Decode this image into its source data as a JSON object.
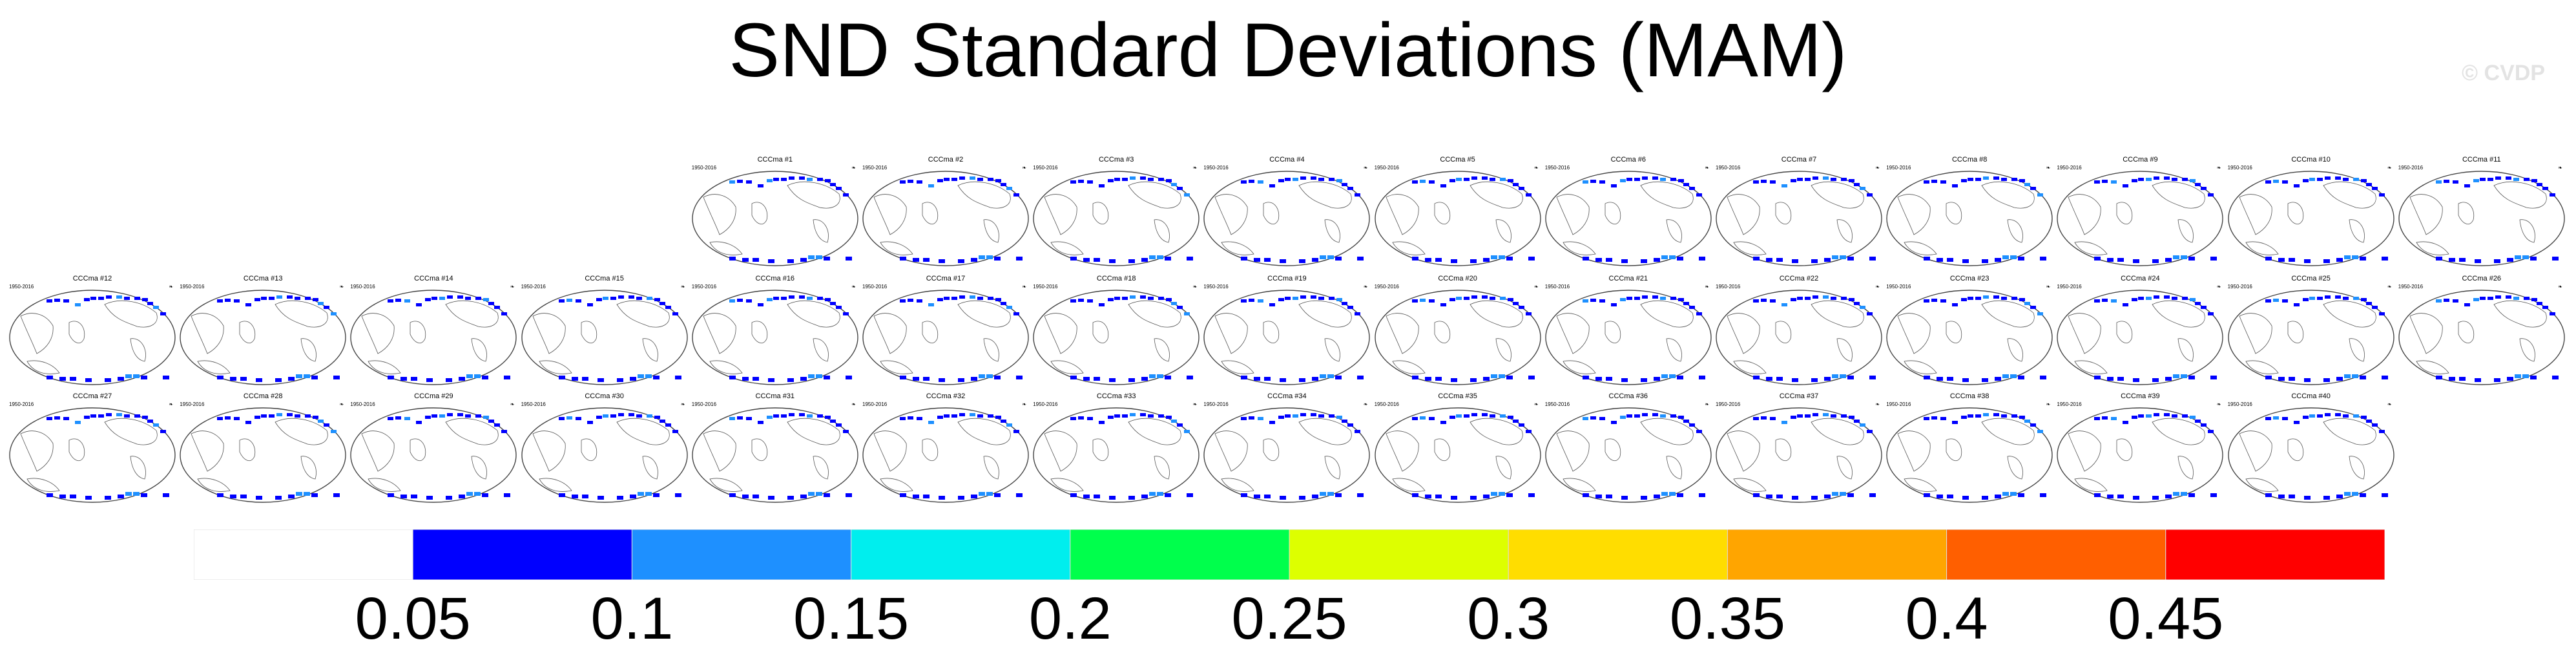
{
  "title": "SND Standard Deviations (MAM)",
  "credit": "© CVDP",
  "panel_years": "1950-2016",
  "panel_corner_mark": "❧",
  "panels": [
    {
      "label": "CCCma #1"
    },
    {
      "label": "CCCma #2"
    },
    {
      "label": "CCCma #3"
    },
    {
      "label": "CCCma #4"
    },
    {
      "label": "CCCma #5"
    },
    {
      "label": "CCCma #6"
    },
    {
      "label": "CCCma #7"
    },
    {
      "label": "CCCma #8"
    },
    {
      "label": "CCCma #9"
    },
    {
      "label": "CCCma #10"
    },
    {
      "label": "CCCma #11"
    },
    {
      "label": "CCCma #12"
    },
    {
      "label": "CCCma #13"
    },
    {
      "label": "CCCma #14"
    },
    {
      "label": "CCCma #15"
    },
    {
      "label": "CCCma #16"
    },
    {
      "label": "CCCma #17"
    },
    {
      "label": "CCCma #18"
    },
    {
      "label": "CCCma #19"
    },
    {
      "label": "CCCma #20"
    },
    {
      "label": "CCCma #21"
    },
    {
      "label": "CCCma #22"
    },
    {
      "label": "CCCma #23"
    },
    {
      "label": "CCCma #24"
    },
    {
      "label": "CCCma #25"
    },
    {
      "label": "CCCma #26"
    },
    {
      "label": "CCCma #27"
    },
    {
      "label": "CCCma #28"
    },
    {
      "label": "CCCma #29"
    },
    {
      "label": "CCCma #30"
    },
    {
      "label": "CCCma #31"
    },
    {
      "label": "CCCma #32"
    },
    {
      "label": "CCCma #33"
    },
    {
      "label": "CCCma #34"
    },
    {
      "label": "CCCma #35"
    },
    {
      "label": "CCCma #36"
    },
    {
      "label": "CCCma #37"
    },
    {
      "label": "CCCma #38"
    },
    {
      "label": "CCCma #39"
    },
    {
      "label": "CCCma #40"
    }
  ],
  "chart_data": {
    "type": "heatmap",
    "title": "SND Standard Deviations (MAM)",
    "colorbar": {
      "levels": [
        0.05,
        0.1,
        0.15,
        0.2,
        0.25,
        0.3,
        0.35,
        0.4,
        0.45
      ],
      "tick_labels": [
        "0.05",
        "0.1",
        "0.15",
        "0.2",
        "0.25",
        "0.3",
        "0.35",
        "0.4",
        "0.45"
      ],
      "colors": [
        "#ffffff",
        "#0000ff",
        "#1e90ff",
        "#00eeee",
        "#00ff4c",
        "#ddff00",
        "#ffdd00",
        "#ffa500",
        "#ff5f00",
        "#ff0000"
      ]
    },
    "members": 40,
    "panel_grid": {
      "rows": 3,
      "row_counts": [
        11,
        15,
        14
      ]
    }
  }
}
